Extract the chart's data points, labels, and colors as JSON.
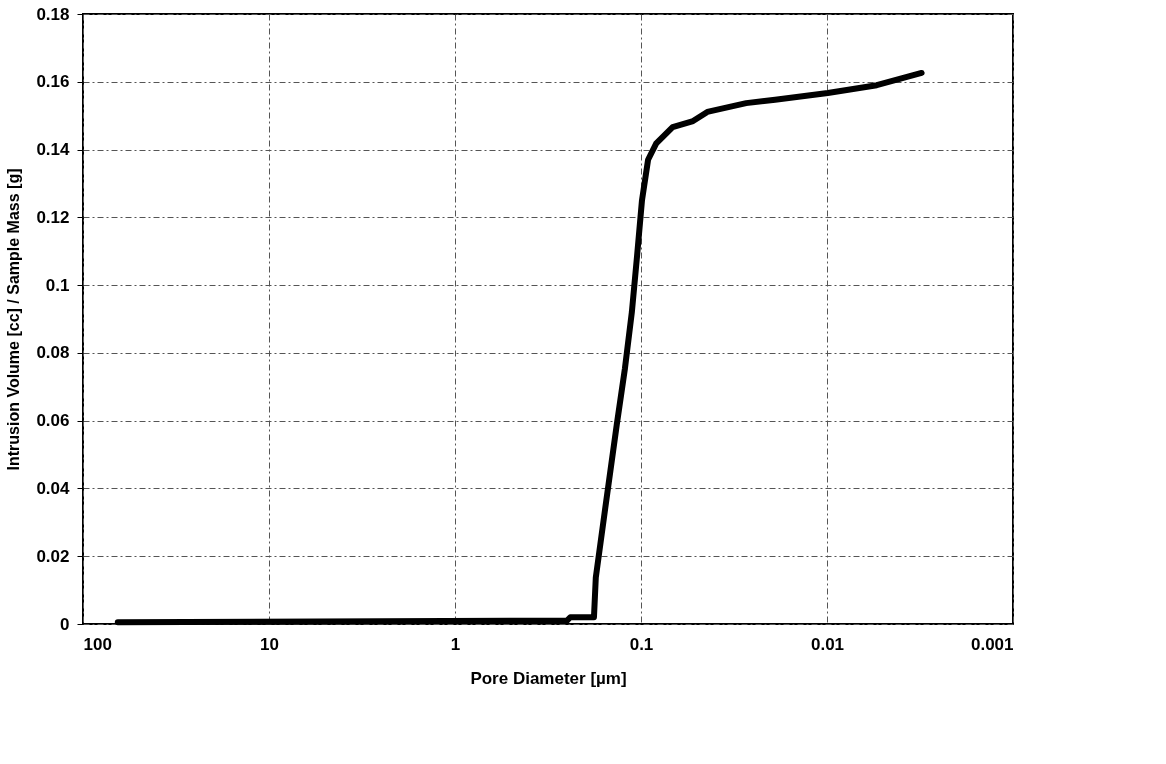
{
  "chart_data": {
    "type": "line",
    "xlabel": "Pore Diameter [µm]",
    "ylabel": "Intrusion Volume [cc] / Sample Mass [g]",
    "xlim": [
      100,
      0.001
    ],
    "xticks": [
      100,
      10,
      1,
      0.1,
      0.01,
      0.001
    ],
    "ylim": [
      0,
      0.18
    ],
    "yticks": [
      0,
      0.02,
      0.04,
      0.06,
      0.08,
      0.1,
      0.12,
      0.14,
      0.16,
      0.18
    ],
    "log": "x",
    "grid": true,
    "marker": "none",
    "line_style": "solid",
    "series": [
      {
        "color": "#000000",
        "x": [
          65,
          0.25,
          0.24,
          0.179,
          0.175,
          0.156,
          0.135,
          0.122,
          0.112,
          0.105,
          0.0988,
          0.0916,
          0.0828,
          0.0676,
          0.0525,
          0.044,
          0.0272,
          0.019,
          0.0099,
          0.0054,
          0.0031
        ],
        "values": [
          0.0005,
          0.001,
          0.002,
          0.002,
          0.0137,
          0.0338,
          0.0588,
          0.0754,
          0.092,
          0.1086,
          0.125,
          0.137,
          0.1418,
          0.1466,
          0.1484,
          0.1511,
          0.1537,
          0.1547,
          0.1567,
          0.159,
          0.1626
        ]
      }
    ]
  }
}
